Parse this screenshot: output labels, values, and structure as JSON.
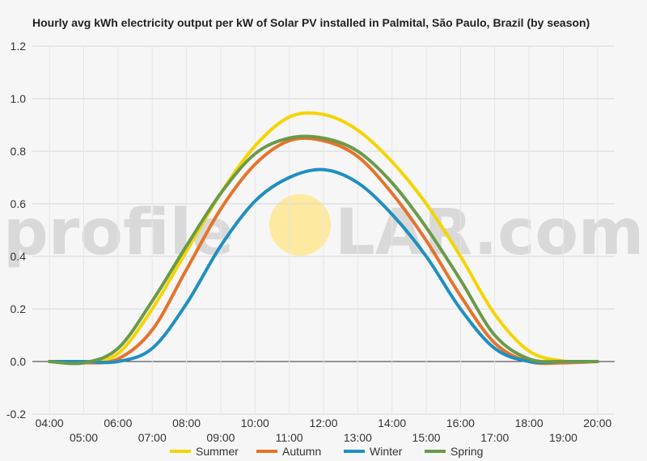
{
  "chart_data": {
    "type": "line",
    "title": "Hourly avg kWh electricity output per kW of Solar PV installed in Palmital, São Paulo, Brazil (by season)",
    "watermark": {
      "left_text": "profile",
      "right_text": "LAR.com",
      "sun_color": "#fde9a0"
    },
    "xlabel": "",
    "ylabel": "",
    "ylim": [
      -0.2,
      1.2
    ],
    "yticks": [
      "-0.2",
      "0.0",
      "0.2",
      "0.4",
      "0.6",
      "0.8",
      "1.0",
      "1.2"
    ],
    "ytick_values": [
      -0.2,
      0,
      0.2,
      0.4,
      0.6,
      0.8,
      1.0,
      1.2
    ],
    "x_ticks_upper": [
      "04:00",
      "06:00",
      "08:00",
      "10:00",
      "12:00",
      "14:00",
      "16:00",
      "18:00",
      "20:00"
    ],
    "x_ticks_lower": [
      "05:00",
      "07:00",
      "09:00",
      "11:00",
      "13:00",
      "15:00",
      "17:00",
      "19:00"
    ],
    "x": [
      "04:00",
      "05:00",
      "06:00",
      "07:00",
      "08:00",
      "09:00",
      "10:00",
      "11:00",
      "12:00",
      "13:00",
      "14:00",
      "15:00",
      "16:00",
      "17:00",
      "18:00",
      "19:00",
      "20:00"
    ],
    "grid": true,
    "legend_position": "bottom",
    "series": [
      {
        "name": "Summer",
        "color": "#f5d400",
        "values": [
          0,
          -0.005,
          0.03,
          0.2,
          0.42,
          0.64,
          0.82,
          0.93,
          0.94,
          0.88,
          0.76,
          0.6,
          0.4,
          0.18,
          0.04,
          0.002,
          0
        ]
      },
      {
        "name": "Autumn",
        "color": "#e5732b",
        "values": [
          0,
          -0.005,
          0.01,
          0.12,
          0.35,
          0.58,
          0.75,
          0.84,
          0.84,
          0.78,
          0.64,
          0.46,
          0.25,
          0.07,
          0.0,
          -0.005,
          0
        ]
      },
      {
        "name": "Winter",
        "color": "#1f8fbf",
        "values": [
          0,
          0,
          0,
          0.05,
          0.22,
          0.44,
          0.61,
          0.7,
          0.73,
          0.68,
          0.56,
          0.4,
          0.2,
          0.05,
          0.0,
          0,
          0
        ]
      },
      {
        "name": "Spring",
        "color": "#6a9a49",
        "values": [
          0,
          -0.005,
          0.05,
          0.23,
          0.44,
          0.64,
          0.79,
          0.85,
          0.85,
          0.8,
          0.68,
          0.51,
          0.31,
          0.1,
          0.01,
          0.0,
          0
        ]
      }
    ]
  }
}
